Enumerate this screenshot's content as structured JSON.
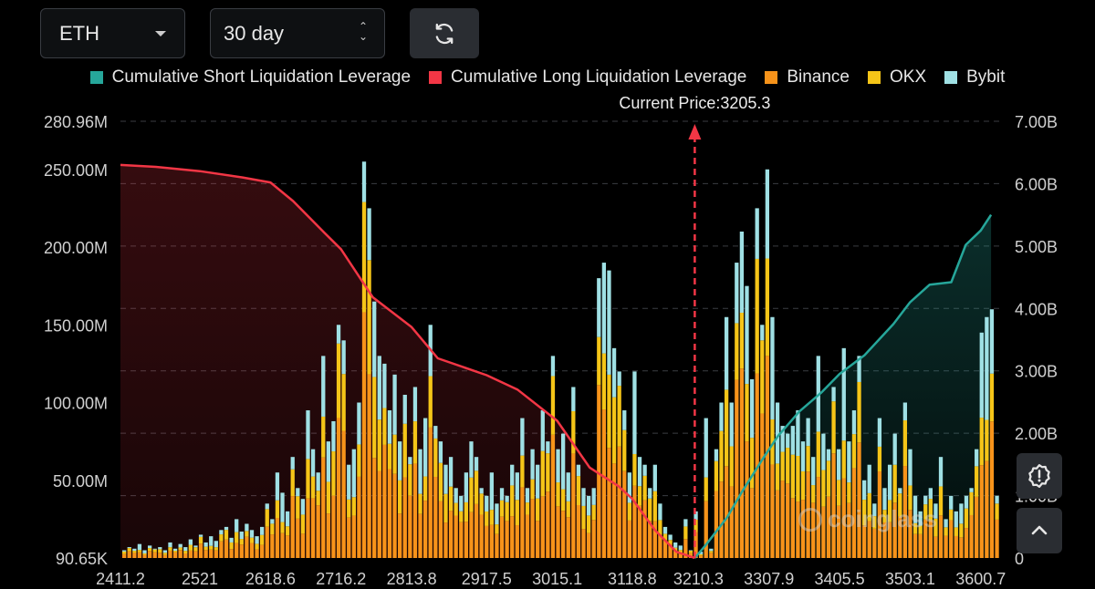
{
  "controls": {
    "coin": "ETH",
    "range": "30 day",
    "refresh_icon": "refresh-icon"
  },
  "legend": [
    {
      "label": "Cumulative Short Liquidation Leverage",
      "color": "#26a69a"
    },
    {
      "label": "Cumulative Long Liquidation Leverage",
      "color": "#f23645"
    },
    {
      "label": "Binance",
      "color": "#f7931a"
    },
    {
      "label": "OKX",
      "color": "#f5c518"
    },
    {
      "label": "Bybit",
      "color": "#9fe0e4"
    }
  ],
  "side_buttons": {
    "alert_icon": "alert-badge-icon",
    "up_icon": "chevron-up-icon"
  },
  "watermark": "coinglass",
  "chart_data": {
    "type": "bar",
    "title": "",
    "current_price_label": "Current Price:3205.3",
    "current_price": 3205.3,
    "x_range": [
      2411.2,
      3630
    ],
    "x_ticks": [
      "2411.2",
      "2521",
      "2618.6",
      "2716.2",
      "2813.8",
      "2917.5",
      "3015.1",
      "3118.8",
      "3210.3",
      "3307.9",
      "3405.5",
      "3503.1",
      "3600.7"
    ],
    "y_left_ticks": [
      "280.96M",
      "250.00M",
      "200.00M",
      "150.00M",
      "100.00M",
      "50.00M",
      "90.65K"
    ],
    "y_left_range": [
      0,
      280.96
    ],
    "y_right_ticks": [
      "7.00B",
      "6.00B",
      "5.00B",
      "4.00B",
      "3.00B",
      "2.00B",
      "1.00B",
      "0"
    ],
    "y_right_range": [
      0,
      7
    ],
    "bar_stack_order": [
      "Binance",
      "OKX",
      "Bybit"
    ],
    "bar_totals_M": [
      5,
      7,
      6,
      9,
      5,
      8,
      6,
      7,
      5,
      10,
      6,
      9,
      7,
      12,
      8,
      15,
      10,
      14,
      11,
      18,
      20,
      13,
      25,
      17,
      22,
      18,
      14,
      20,
      35,
      25,
      55,
      42,
      30,
      65,
      45,
      38,
      95,
      70,
      55,
      130,
      75,
      88,
      150,
      140,
      60,
      70,
      100,
      255,
      225,
      165,
      130,
      125,
      95,
      118,
      75,
      105,
      65,
      110,
      70,
      90,
      150,
      85,
      75,
      60,
      65,
      45,
      40,
      55,
      75,
      65,
      45,
      40,
      55,
      35,
      45,
      40,
      60,
      55,
      90,
      45,
      70,
      60,
      95,
      75,
      130,
      70,
      80,
      55,
      110,
      60,
      45,
      40,
      45,
      180,
      190,
      185,
      135,
      120,
      95,
      55,
      120,
      65,
      60,
      45,
      60,
      35,
      20,
      15,
      10,
      8,
      25,
      5,
      30,
      4,
      90,
      6,
      70,
      100,
      155,
      100,
      190,
      210,
      175,
      115,
      225,
      150,
      250,
      155,
      100,
      85,
      80,
      85,
      95,
      75,
      90,
      65,
      130,
      80,
      70,
      110,
      70,
      135,
      75,
      95,
      130,
      50,
      60,
      35,
      90,
      45,
      60,
      80,
      45,
      100,
      70,
      40,
      30,
      40,
      45,
      35,
      65,
      25,
      40,
      30,
      35,
      40,
      45,
      70,
      145,
      155,
      160,
      40
    ],
    "series": [
      {
        "name": "Cumulative Long Liquidation Leverage",
        "x": [
          2411.2,
          2460,
          2521,
          2580,
          2618.6,
          2650,
          2690,
          2716.2,
          2760,
          2813.8,
          2850,
          2917.5,
          2960,
          3015.1,
          3060,
          3100,
          3118.8,
          3150,
          3180,
          3205.3
        ],
        "y_B": [
          6.3,
          6.27,
          6.2,
          6.1,
          6.02,
          5.72,
          5.25,
          4.95,
          4.18,
          3.7,
          3.2,
          2.93,
          2.7,
          2.2,
          1.45,
          1.15,
          0.95,
          0.45,
          0.1,
          0
        ]
      },
      {
        "name": "Cumulative Short Liquidation Leverage",
        "x": [
          3205.3,
          3220,
          3250,
          3270,
          3300,
          3320,
          3350,
          3380,
          3405.5,
          3440,
          3480,
          3503.1,
          3530,
          3560,
          3580,
          3600.7,
          3615
        ],
        "y_B": [
          0,
          0.2,
          0.65,
          1.05,
          1.6,
          1.95,
          2.35,
          2.65,
          2.95,
          3.25,
          3.75,
          4.1,
          4.38,
          4.42,
          5.02,
          5.25,
          5.5
        ]
      }
    ]
  }
}
